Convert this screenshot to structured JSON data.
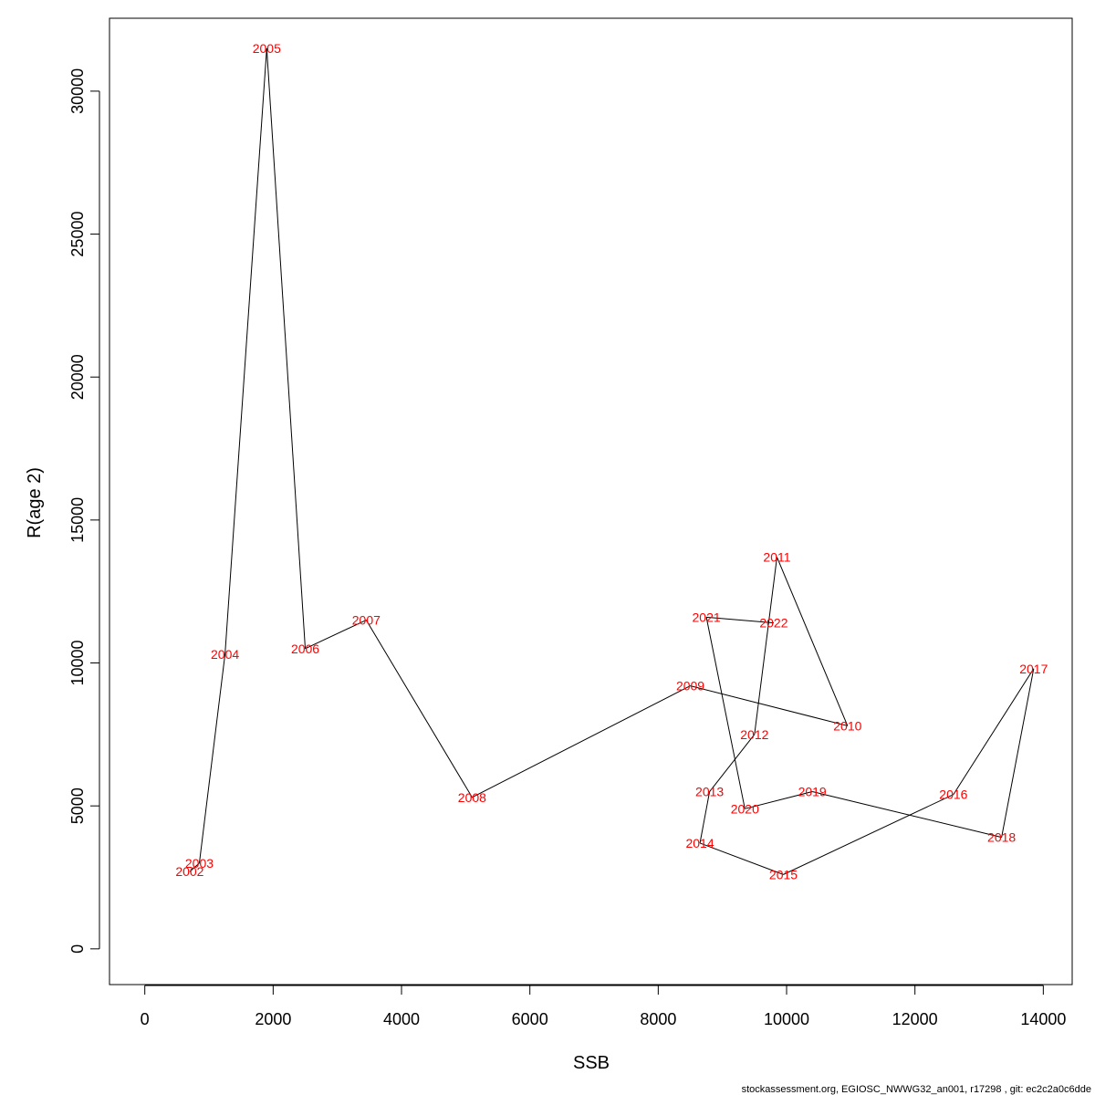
{
  "chart_data": {
    "type": "line",
    "title": "",
    "xlabel": "SSB",
    "ylabel": "R(age 2)",
    "xlim": [
      -550,
      14450
    ],
    "ylim": [
      -1250,
      32550
    ],
    "xticks": [
      0,
      2000,
      4000,
      6000,
      8000,
      10000,
      12000,
      14000
    ],
    "yticks": [
      0,
      5000,
      10000,
      15000,
      20000,
      25000,
      30000
    ],
    "grid": false,
    "series": [
      {
        "color": "#000000",
        "label_color": "#ff0000",
        "points": [
          {
            "label": "2002",
            "x": 700,
            "y": 2700
          },
          {
            "label": "2003",
            "x": 850,
            "y": 3000
          },
          {
            "label": "2004",
            "x": 1250,
            "y": 10300
          },
          {
            "label": "2005",
            "x": 1900,
            "y": 31500
          },
          {
            "label": "2006",
            "x": 2500,
            "y": 10500
          },
          {
            "label": "2007",
            "x": 3450,
            "y": 11500
          },
          {
            "label": "2008",
            "x": 5100,
            "y": 5300
          },
          {
            "label": "2009",
            "x": 8500,
            "y": 9200
          },
          {
            "label": "2010",
            "x": 10950,
            "y": 7800
          },
          {
            "label": "2011",
            "x": 9850,
            "y": 13700
          },
          {
            "label": "2012",
            "x": 9500,
            "y": 7500
          },
          {
            "label": "2013",
            "x": 8800,
            "y": 5500
          },
          {
            "label": "2014",
            "x": 8650,
            "y": 3700
          },
          {
            "label": "2015",
            "x": 9950,
            "y": 2600
          },
          {
            "label": "2016",
            "x": 12600,
            "y": 5400
          },
          {
            "label": "2017",
            "x": 13850,
            "y": 9800
          },
          {
            "label": "2018",
            "x": 13350,
            "y": 3900
          },
          {
            "label": "2019",
            "x": 10400,
            "y": 5500
          },
          {
            "label": "2020",
            "x": 9350,
            "y": 4900
          },
          {
            "label": "2021",
            "x": 8750,
            "y": 11600
          },
          {
            "label": "2022",
            "x": 9800,
            "y": 11400
          }
        ]
      }
    ]
  },
  "footer": "stockassessment.org, EGIOSC_NWWG32_an001, r17298 , git: ec2c2a0c6dde"
}
